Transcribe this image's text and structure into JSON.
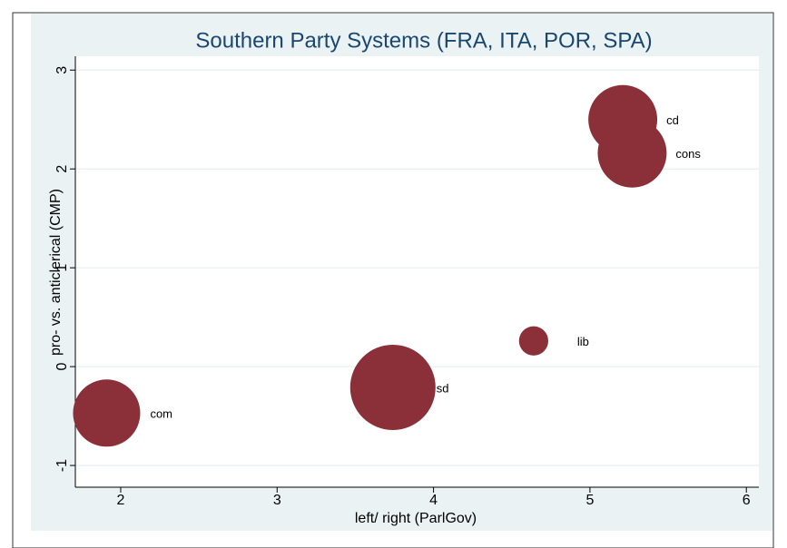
{
  "chart_data": {
    "type": "bubble",
    "title": "Southern Party Systems (FRA, ITA, POR, SPA)",
    "x_label": "left/ right (ParlGov)",
    "y_label": "pro- vs. anticlerical (CMP)",
    "x": [
      5.21,
      5.27,
      4.64,
      3.74,
      1.91
    ],
    "values": [
      2.5,
      2.16,
      0.26,
      -0.21,
      -0.47
    ],
    "sizes": [
      14.4,
      14.4,
      2.6,
      22.1,
      13.7
    ],
    "point_labels": [
      "cd",
      "cons",
      "lib",
      "sd",
      "com"
    ],
    "color": "#8b3038",
    "xlim": [
      1.71,
      6.08
    ],
    "xticks": [
      2,
      3,
      4,
      5,
      6
    ],
    "ylim": [
      -1.22,
      3.14
    ],
    "yticks": [
      -1,
      0,
      1,
      2,
      3
    ],
    "grid": true
  }
}
